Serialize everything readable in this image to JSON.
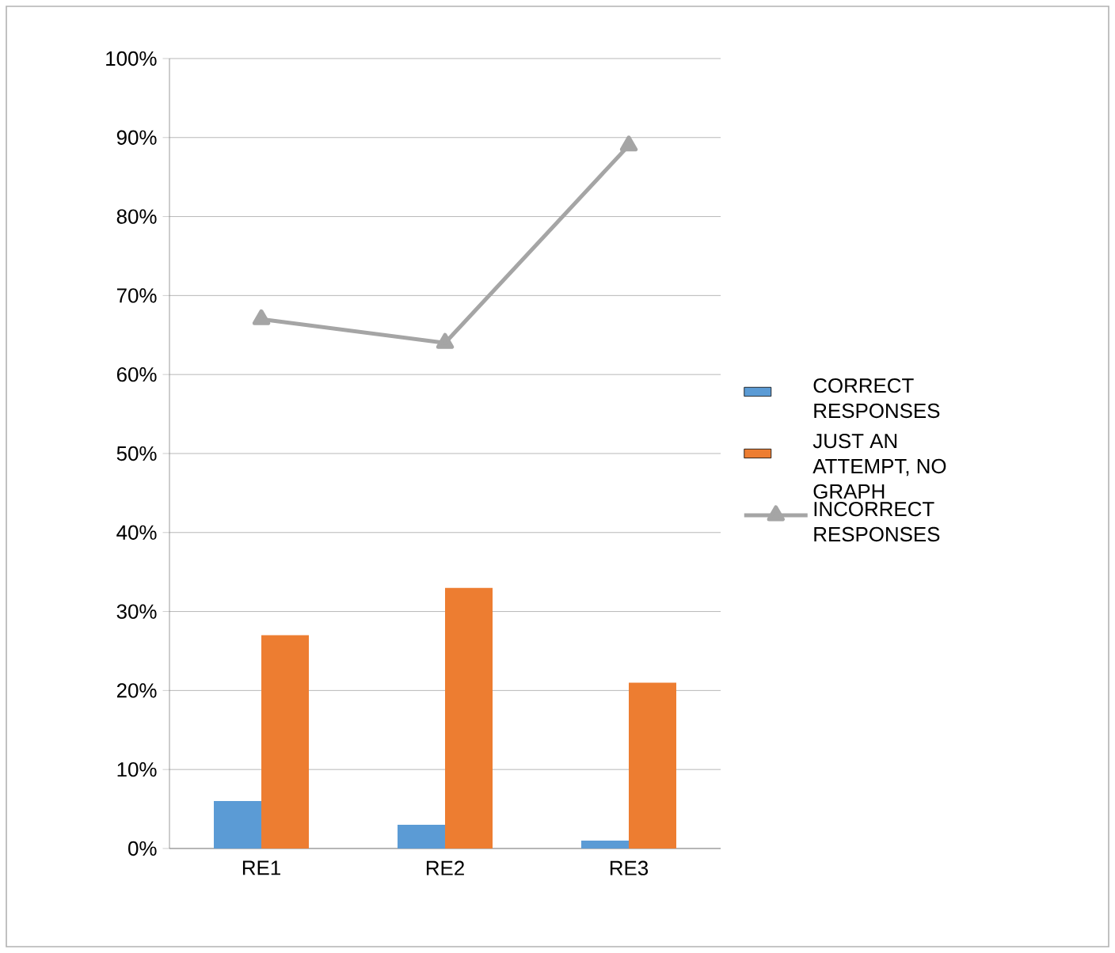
{
  "chart_data": {
    "type": "bar",
    "categories": [
      "RE1",
      "RE2",
      "RE3"
    ],
    "series": [
      {
        "name": "CORRECT RESPONSES",
        "color": "#5b9bd5",
        "values": [
          6,
          3,
          1
        ]
      },
      {
        "name": "JUST AN ATTEMPT, NO GRAPH",
        "color": "#ed7d31",
        "values": [
          27,
          33,
          21
        ]
      },
      {
        "name": "INCORRECT RESPONSES",
        "color": "#a5a5a5",
        "values": [
          67,
          64,
          89
        ],
        "type": "line",
        "marker": "triangle"
      }
    ],
    "ylim": [
      0,
      100
    ],
    "yticks": [
      {
        "value": 0,
        "label": "0%"
      },
      {
        "value": 10,
        "label": "10%"
      },
      {
        "value": 20,
        "label": "20%"
      },
      {
        "value": 30,
        "label": "30%"
      },
      {
        "value": 40,
        "label": "40%"
      },
      {
        "value": 50,
        "label": "50%"
      },
      {
        "value": 60,
        "label": "60%"
      },
      {
        "value": 70,
        "label": "70%"
      },
      {
        "value": 80,
        "label": "80%"
      },
      {
        "value": 90,
        "label": "90%"
      },
      {
        "value": 100,
        "label": "100%"
      }
    ],
    "grid": "y",
    "legend": "right"
  }
}
